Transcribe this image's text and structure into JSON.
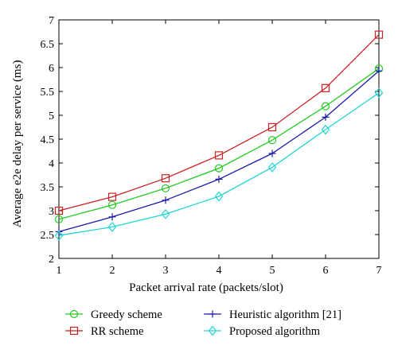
{
  "chart_data": {
    "type": "line",
    "title": "",
    "xlabel": "Packet arrival rate (packets/slot)",
    "ylabel": "Average e2e delay per service (ms)",
    "xlim": [
      1,
      7
    ],
    "ylim": [
      2,
      7
    ],
    "x": [
      1,
      2,
      3,
      4,
      5,
      6,
      7
    ],
    "xticks": [
      "1",
      "2",
      "3",
      "4",
      "5",
      "6",
      "7"
    ],
    "yticks": [
      "2",
      "2.5",
      "3",
      "3.5",
      "4",
      "4.5",
      "5",
      "5.5",
      "6",
      "6.5",
      "7"
    ],
    "grid": false,
    "legend_position": "below-plot",
    "series": [
      {
        "name": "Greedy scheme",
        "color": "#22cc22",
        "marker": "circle",
        "values": [
          2.82,
          3.12,
          3.47,
          3.89,
          4.48,
          5.19,
          5.98
        ]
      },
      {
        "name": "RR scheme",
        "color": "#cc2222",
        "marker": "square",
        "values": [
          3.0,
          3.29,
          3.68,
          4.16,
          4.75,
          5.57,
          6.69
        ]
      },
      {
        "name": "Heuristic algorithm [21]",
        "color": "#1a1aaa",
        "marker": "plus",
        "values": [
          2.56,
          2.87,
          3.22,
          3.66,
          4.2,
          4.96,
          5.93
        ]
      },
      {
        "name": "Proposed algorithm",
        "color": "#22d4d4",
        "marker": "diamond",
        "values": [
          2.48,
          2.66,
          2.93,
          3.3,
          3.91,
          4.7,
          5.47
        ]
      }
    ]
  }
}
